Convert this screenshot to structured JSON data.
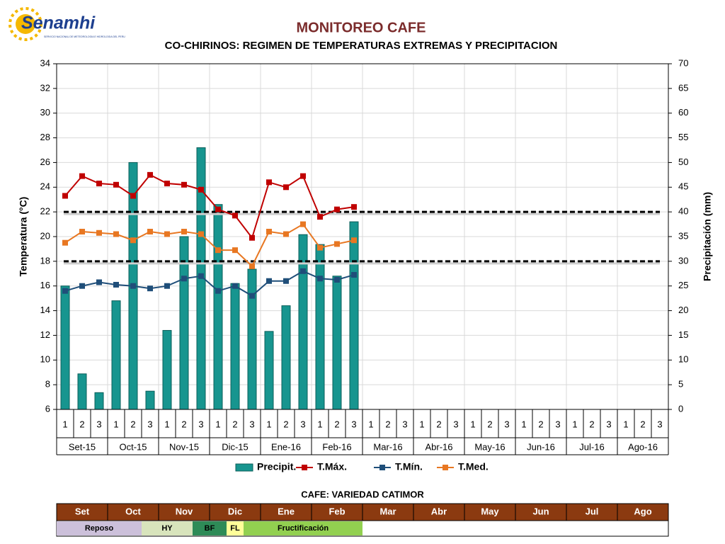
{
  "logo": {
    "name": "Senamhi",
    "subtitle": "SERVICIO NACIONAL DE METEOROLOGIA E HIDROLOGIA DEL PERU"
  },
  "chart_data": {
    "type": "combo",
    "title": "MONITOREO CAFE",
    "subtitle": "CO-CHIRINOS: REGIMEN DE TEMPERATURAS EXTREMAS Y PRECIPITACION",
    "y_label": "Temperatura (°C)",
    "y2_label": "Precipitación (mm)",
    "categories": [
      "1",
      "2",
      "3",
      "1",
      "2",
      "3",
      "1",
      "2",
      "3",
      "1",
      "2",
      "3",
      "1",
      "2",
      "3",
      "1",
      "2",
      "3",
      "1",
      "2",
      "3",
      "1",
      "2",
      "3",
      "1",
      "2",
      "3",
      "1",
      "2",
      "3",
      "1",
      "2",
      "3",
      "1",
      "2",
      "3"
    ],
    "months": [
      "Set-15",
      "Oct-15",
      "Nov-15",
      "Dic-15",
      "Ene-16",
      "Feb-16",
      "Mar-16",
      "Abr-16",
      "May-16",
      "Jun-16",
      "Jul-16",
      "Ago-16"
    ],
    "ylim": [
      6,
      34
    ],
    "yticks": [
      6,
      8,
      10,
      12,
      14,
      16,
      18,
      20,
      22,
      24,
      26,
      28,
      30,
      32,
      34
    ],
    "y2lim": [
      0,
      70
    ],
    "y2ticks": [
      0,
      5,
      10,
      15,
      20,
      25,
      30,
      35,
      40,
      45,
      50,
      55,
      60,
      65,
      70
    ],
    "grid": true,
    "reference_lines": [
      22,
      18
    ],
    "legend": "bottom",
    "series": [
      {
        "name": "Precipit.",
        "type": "bar",
        "axis": "y2",
        "color": "#17958f",
        "values": [
          25,
          7.2,
          3.4,
          22,
          50,
          3.7,
          16,
          35,
          53,
          41.5,
          25.5,
          28.4,
          15.8,
          21,
          35.4,
          33.4,
          27,
          38,
          null,
          null,
          null,
          null,
          null,
          null,
          null,
          null,
          null,
          null,
          null,
          null,
          null,
          null,
          null,
          null,
          null,
          null
        ]
      },
      {
        "name": "T.Máx.",
        "type": "line",
        "color": "#c00000",
        "values": [
          23.3,
          24.9,
          24.3,
          24.2,
          23.3,
          25,
          24.3,
          24.2,
          23.8,
          22.2,
          21.7,
          19.9,
          24.4,
          24,
          24.9,
          21.6,
          22.2,
          22.4,
          null,
          null,
          null,
          null,
          null,
          null,
          null,
          null,
          null,
          null,
          null,
          null,
          null,
          null,
          null,
          null,
          null,
          null
        ]
      },
      {
        "name": "T.Mín.",
        "type": "line",
        "color": "#1f4e79",
        "values": [
          15.6,
          16,
          16.3,
          16.1,
          16,
          15.8,
          16,
          16.6,
          16.8,
          15.6,
          16,
          15.2,
          16.4,
          16.4,
          17.2,
          16.6,
          16.5,
          16.9,
          null,
          null,
          null,
          null,
          null,
          null,
          null,
          null,
          null,
          null,
          null,
          null,
          null,
          null,
          null,
          null,
          null,
          null
        ]
      },
      {
        "name": "T.Med.",
        "type": "line",
        "color": "#e87722",
        "values": [
          19.5,
          20.4,
          20.3,
          20.2,
          19.7,
          20.4,
          20.2,
          20.4,
          20.2,
          18.9,
          18.9,
          17.6,
          20.4,
          20.2,
          21,
          19.1,
          19.4,
          19.7,
          null,
          null,
          null,
          null,
          null,
          null,
          null,
          null,
          null,
          null,
          null,
          null,
          null,
          null,
          null,
          null,
          null,
          null
        ]
      }
    ]
  },
  "phenology": {
    "title": "CAFE: VARIEDAD CATIMOR",
    "header_color": "#8b3a10",
    "months": [
      "Set",
      "Oct",
      "Nov",
      "Dic",
      "Ene",
      "Feb",
      "Mar",
      "Abr",
      "May",
      "Jun",
      "Jul",
      "Ago"
    ],
    "phases": [
      {
        "name": "Reposo",
        "color": "#ccc0da"
      },
      {
        "name": "HY",
        "color": "#d8e4bc"
      },
      {
        "name": "BF",
        "color": "#2e8b57"
      },
      {
        "name": "FL",
        "color": "#ffff99"
      },
      {
        "name": "Fructificación",
        "color": "#92d050"
      }
    ]
  }
}
